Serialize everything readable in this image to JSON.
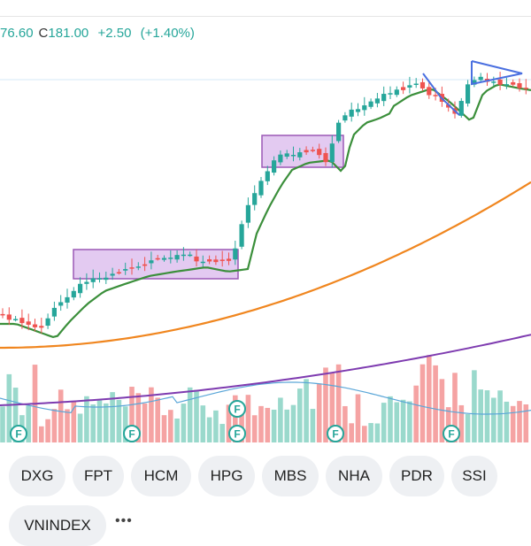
{
  "ohlc": {
    "open_partial": "76.60",
    "close_label": "C",
    "close": "181.00",
    "change": "+2.50",
    "change_pct": "(+1.40%)"
  },
  "colors": {
    "up": "#26a69a",
    "down": "#ef5350",
    "vol_up": "#9ad9cc",
    "vol_down": "#f5a3a3",
    "ma_fast": "#3b8f3b",
    "ma_mid": "#f0861f",
    "ma_slow": "#7e3bb0",
    "vol_ma": "#5aa6d8",
    "zone": "#d9b8ec",
    "zone_border": "#9b59b6",
    "wedge": "#4a6fe0"
  },
  "markers": {
    "label": "F"
  },
  "tickers": [
    "DXG",
    "FPT",
    "HCM",
    "HPG",
    "MBS",
    "NHA",
    "PDR",
    "SSI",
    "VNINDEX"
  ],
  "more_label": "•••"
}
